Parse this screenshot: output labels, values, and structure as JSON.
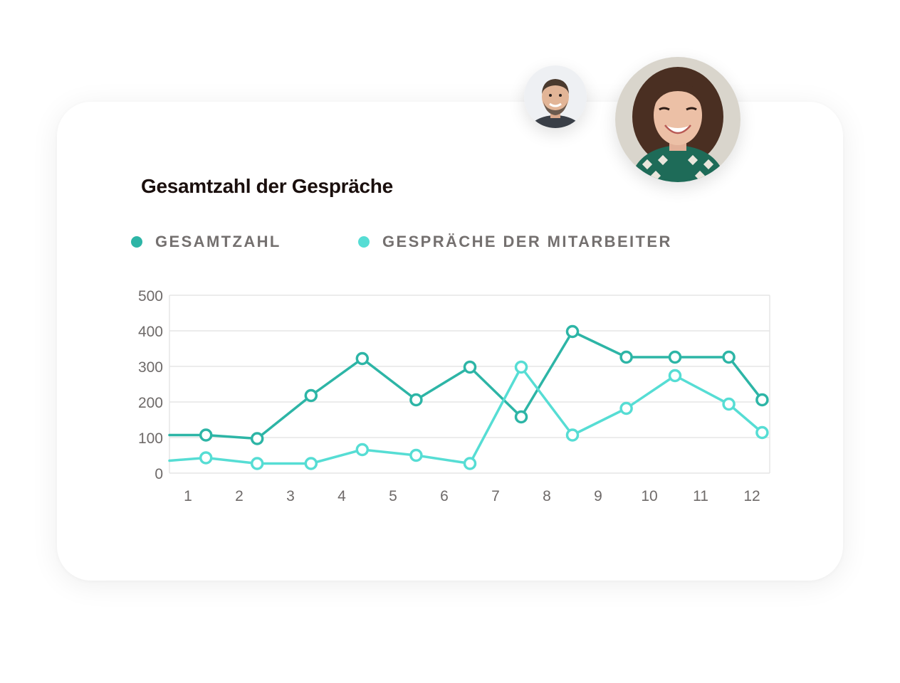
{
  "title": "Gesamtzahl der Gespräche",
  "legend": {
    "total": "GESAMTZAHL",
    "staff": "GESPRÄCHE DER MITARBEITER"
  },
  "colors": {
    "total": "#2db5a6",
    "staff": "#56ddd4",
    "grid": "#e5e5e5",
    "title": "#1a0f0d",
    "label": "#74706f"
  },
  "avatars": [
    {
      "name": "man-avatar-icon"
    },
    {
      "name": "woman-avatar-icon"
    }
  ],
  "chart_data": {
    "type": "line",
    "x": [
      1,
      2,
      3,
      4,
      5,
      6,
      7,
      8,
      9,
      10,
      11,
      12
    ],
    "ylim": [
      0,
      500
    ],
    "yticks": [
      0,
      100,
      200,
      300,
      400,
      500
    ],
    "grid": true,
    "legend_position": "top-left",
    "series": [
      {
        "name": "GESAMTZAHL",
        "color": "#2db5a6",
        "start_value": 107,
        "points": [
          {
            "x": 1.35,
            "y": 107
          },
          {
            "x": 2.35,
            "y": 97
          },
          {
            "x": 3.4,
            "y": 218
          },
          {
            "x": 4.4,
            "y": 322
          },
          {
            "x": 5.45,
            "y": 206
          },
          {
            "x": 6.5,
            "y": 298
          },
          {
            "x": 7.5,
            "y": 158
          },
          {
            "x": 8.5,
            "y": 398
          },
          {
            "x": 9.55,
            "y": 326
          },
          {
            "x": 10.5,
            "y": 326
          },
          {
            "x": 11.55,
            "y": 326
          },
          {
            "x": 12.2,
            "y": 206
          }
        ]
      },
      {
        "name": "GESPRÄCHE DER MITARBEITER",
        "color": "#56ddd4",
        "start_value": 35,
        "points": [
          {
            "x": 1.35,
            "y": 43
          },
          {
            "x": 2.35,
            "y": 27
          },
          {
            "x": 3.4,
            "y": 27
          },
          {
            "x": 4.4,
            "y": 66
          },
          {
            "x": 5.45,
            "y": 50
          },
          {
            "x": 6.5,
            "y": 27
          },
          {
            "x": 7.5,
            "y": 298
          },
          {
            "x": 8.5,
            "y": 107
          },
          {
            "x": 9.55,
            "y": 182
          },
          {
            "x": 10.5,
            "y": 274
          },
          {
            "x": 11.55,
            "y": 194
          },
          {
            "x": 12.2,
            "y": 114
          }
        ]
      }
    ]
  }
}
